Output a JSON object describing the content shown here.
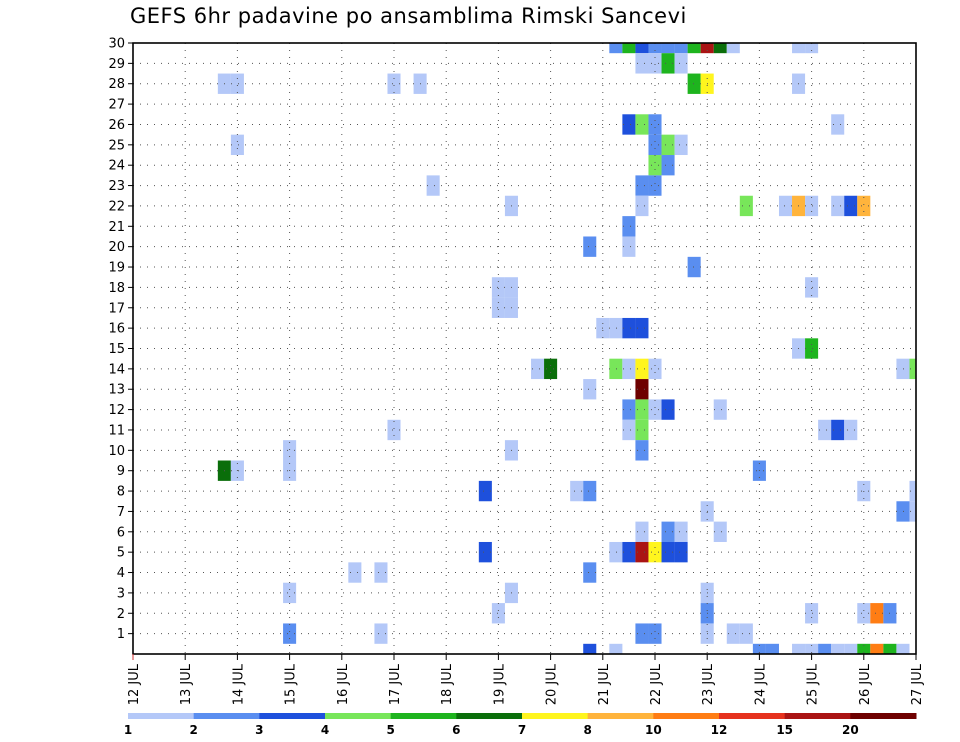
{
  "chart_data": {
    "type": "heatmap",
    "title": "GEFS 6hr padavine po ansamblima Rimski Sancevi",
    "xlabel": "",
    "ylabel": "",
    "x_tick_labels": [
      "12 JUL",
      "13 JUL",
      "14 JUL",
      "15 JUL",
      "16 JUL",
      "17 JUL",
      "18 JUL",
      "19 JUL",
      "20 JUL",
      "21 JUL",
      "22 JUL",
      "23 JUL",
      "24 JUL",
      "25 JUL",
      "26 JUL",
      "27 JUL"
    ],
    "y_tick_labels": [
      "1",
      "2",
      "3",
      "4",
      "5",
      "6",
      "7",
      "8",
      "9",
      "10",
      "11",
      "12",
      "13",
      "14",
      "15",
      "16",
      "17",
      "18",
      "19",
      "20",
      "21",
      "22",
      "23",
      "24",
      "25",
      "26",
      "27",
      "28",
      "29",
      "30"
    ],
    "x_range_days": [
      0,
      15
    ],
    "y_range_members": [
      0,
      30
    ],
    "time_step_days": 0.25,
    "grid": true,
    "color_scale": {
      "labels": [
        "1",
        "2",
        "3",
        "4",
        "5",
        "6",
        "7",
        "8",
        "10",
        "12",
        "15",
        "20"
      ],
      "colors": [
        "#b4c8f8",
        "#5a8ef0",
        "#1e50dc",
        "#78e65a",
        "#1eb41e",
        "#0a6e0a",
        "#fff51e",
        "#ffb43c",
        "#ff7d14",
        "#e6321e",
        "#aa1414",
        "#6e0000"
      ]
    },
    "cells": [
      [
        9.25,
        30,
        2
      ],
      [
        9.5,
        30,
        5
      ],
      [
        9.75,
        30,
        3
      ],
      [
        10,
        30,
        2
      ],
      [
        10.25,
        30,
        2
      ],
      [
        10.5,
        30,
        2
      ],
      [
        10.75,
        30,
        5
      ],
      [
        11,
        30,
        11
      ],
      [
        11.25,
        30,
        6
      ],
      [
        11.5,
        30,
        1
      ],
      [
        12.75,
        30,
        1
      ],
      [
        13,
        30,
        1
      ],
      [
        9.75,
        29,
        1
      ],
      [
        10,
        29,
        1
      ],
      [
        10.25,
        29,
        5
      ],
      [
        10.5,
        29,
        1
      ],
      [
        1.75,
        28,
        1
      ],
      [
        2,
        28,
        1
      ],
      [
        5,
        28,
        1
      ],
      [
        5.5,
        28,
        1
      ],
      [
        10.75,
        28,
        5
      ],
      [
        11,
        28,
        7
      ],
      [
        12.75,
        28,
        1
      ],
      [
        9.5,
        26,
        3
      ],
      [
        9.75,
        26,
        4
      ],
      [
        10,
        26,
        2
      ],
      [
        13.5,
        26,
        1
      ],
      [
        2,
        25,
        1
      ],
      [
        10,
        25,
        2
      ],
      [
        10.25,
        25,
        4
      ],
      [
        10.5,
        25,
        1
      ],
      [
        10,
        24,
        4
      ],
      [
        10.25,
        24,
        2
      ],
      [
        5.75,
        23,
        1
      ],
      [
        9.75,
        23,
        2
      ],
      [
        10,
        23,
        2
      ],
      [
        7.25,
        22,
        1
      ],
      [
        9.75,
        22,
        1
      ],
      [
        11.75,
        22,
        4
      ],
      [
        12.5,
        22,
        1
      ],
      [
        12.75,
        22,
        8
      ],
      [
        13,
        22,
        1
      ],
      [
        13.5,
        22,
        1
      ],
      [
        13.75,
        22,
        3
      ],
      [
        14,
        22,
        8
      ],
      [
        9.5,
        21,
        2
      ],
      [
        8.75,
        20,
        2
      ],
      [
        9.5,
        20,
        1
      ],
      [
        10.75,
        19,
        2
      ],
      [
        7,
        18,
        1
      ],
      [
        7.25,
        18,
        1
      ],
      [
        13,
        18,
        1
      ],
      [
        7,
        17,
        1
      ],
      [
        7.25,
        17,
        1
      ],
      [
        9.25,
        16,
        1
      ],
      [
        9.5,
        16,
        3
      ],
      [
        9.75,
        16,
        3
      ],
      [
        9,
        16,
        1
      ],
      [
        12.75,
        15,
        1
      ],
      [
        13,
        15,
        5
      ],
      [
        7.75,
        14,
        1
      ],
      [
        8,
        14,
        6
      ],
      [
        9.25,
        14,
        4
      ],
      [
        9.5,
        14,
        1
      ],
      [
        9.75,
        14,
        7
      ],
      [
        10,
        14,
        1
      ],
      [
        14.75,
        14,
        1
      ],
      [
        15,
        14,
        4
      ],
      [
        9.75,
        13,
        12
      ],
      [
        8.75,
        13,
        1
      ],
      [
        9.5,
        12,
        2
      ],
      [
        9.75,
        12,
        4
      ],
      [
        10,
        12,
        1
      ],
      [
        10.25,
        12,
        3
      ],
      [
        11.25,
        12,
        1
      ],
      [
        5,
        11,
        1
      ],
      [
        9.5,
        11,
        1
      ],
      [
        9.75,
        11,
        4
      ],
      [
        13.25,
        11,
        1
      ],
      [
        13.5,
        11,
        3
      ],
      [
        13.75,
        11,
        1
      ],
      [
        3,
        10,
        1
      ],
      [
        7.25,
        10,
        1
      ],
      [
        9.75,
        10,
        2
      ],
      [
        1.75,
        9,
        6
      ],
      [
        2,
        9,
        1
      ],
      [
        3,
        9,
        1
      ],
      [
        12,
        9,
        2
      ],
      [
        6.75,
        8,
        3
      ],
      [
        8.5,
        8,
        1
      ],
      [
        8.75,
        8,
        2
      ],
      [
        14,
        8,
        1
      ],
      [
        15,
        8,
        1
      ],
      [
        11,
        7,
        1
      ],
      [
        14.75,
        7,
        2
      ],
      [
        15,
        7,
        1
      ],
      [
        9.75,
        6,
        1
      ],
      [
        10.25,
        6,
        2
      ],
      [
        10.5,
        6,
        1
      ],
      [
        11.25,
        6,
        1
      ],
      [
        6.75,
        5,
        3
      ],
      [
        9.25,
        5,
        1
      ],
      [
        9.5,
        5,
        3
      ],
      [
        9.75,
        5,
        11
      ],
      [
        10,
        5,
        7
      ],
      [
        10.25,
        5,
        3
      ],
      [
        10.5,
        5,
        3
      ],
      [
        4.25,
        4,
        1
      ],
      [
        4.75,
        4,
        1
      ],
      [
        8.75,
        4,
        2
      ],
      [
        3,
        3,
        1
      ],
      [
        7.25,
        3,
        1
      ],
      [
        11,
        3,
        1
      ],
      [
        7,
        2,
        1
      ],
      [
        11,
        2,
        2
      ],
      [
        13,
        2,
        1
      ],
      [
        14,
        2,
        1
      ],
      [
        14.25,
        2,
        9
      ],
      [
        14.5,
        2,
        2
      ],
      [
        3,
        1,
        2
      ],
      [
        4.75,
        1,
        1
      ],
      [
        9.75,
        1,
        2
      ],
      [
        10,
        1,
        2
      ],
      [
        11,
        1,
        1
      ],
      [
        11.5,
        1,
        1
      ],
      [
        11.75,
        1,
        1
      ],
      [
        8.75,
        0,
        3
      ],
      [
        9.25,
        0,
        1
      ],
      [
        12,
        0,
        2
      ],
      [
        12.25,
        0,
        2
      ],
      [
        12.75,
        0,
        1
      ],
      [
        13,
        0,
        1
      ],
      [
        13.25,
        0,
        2
      ],
      [
        13.5,
        0,
        1
      ],
      [
        13.75,
        0,
        1
      ],
      [
        14,
        0,
        5
      ],
      [
        14.25,
        0,
        9
      ],
      [
        14.5,
        0,
        5
      ],
      [
        14.75,
        0,
        1
      ]
    ]
  }
}
